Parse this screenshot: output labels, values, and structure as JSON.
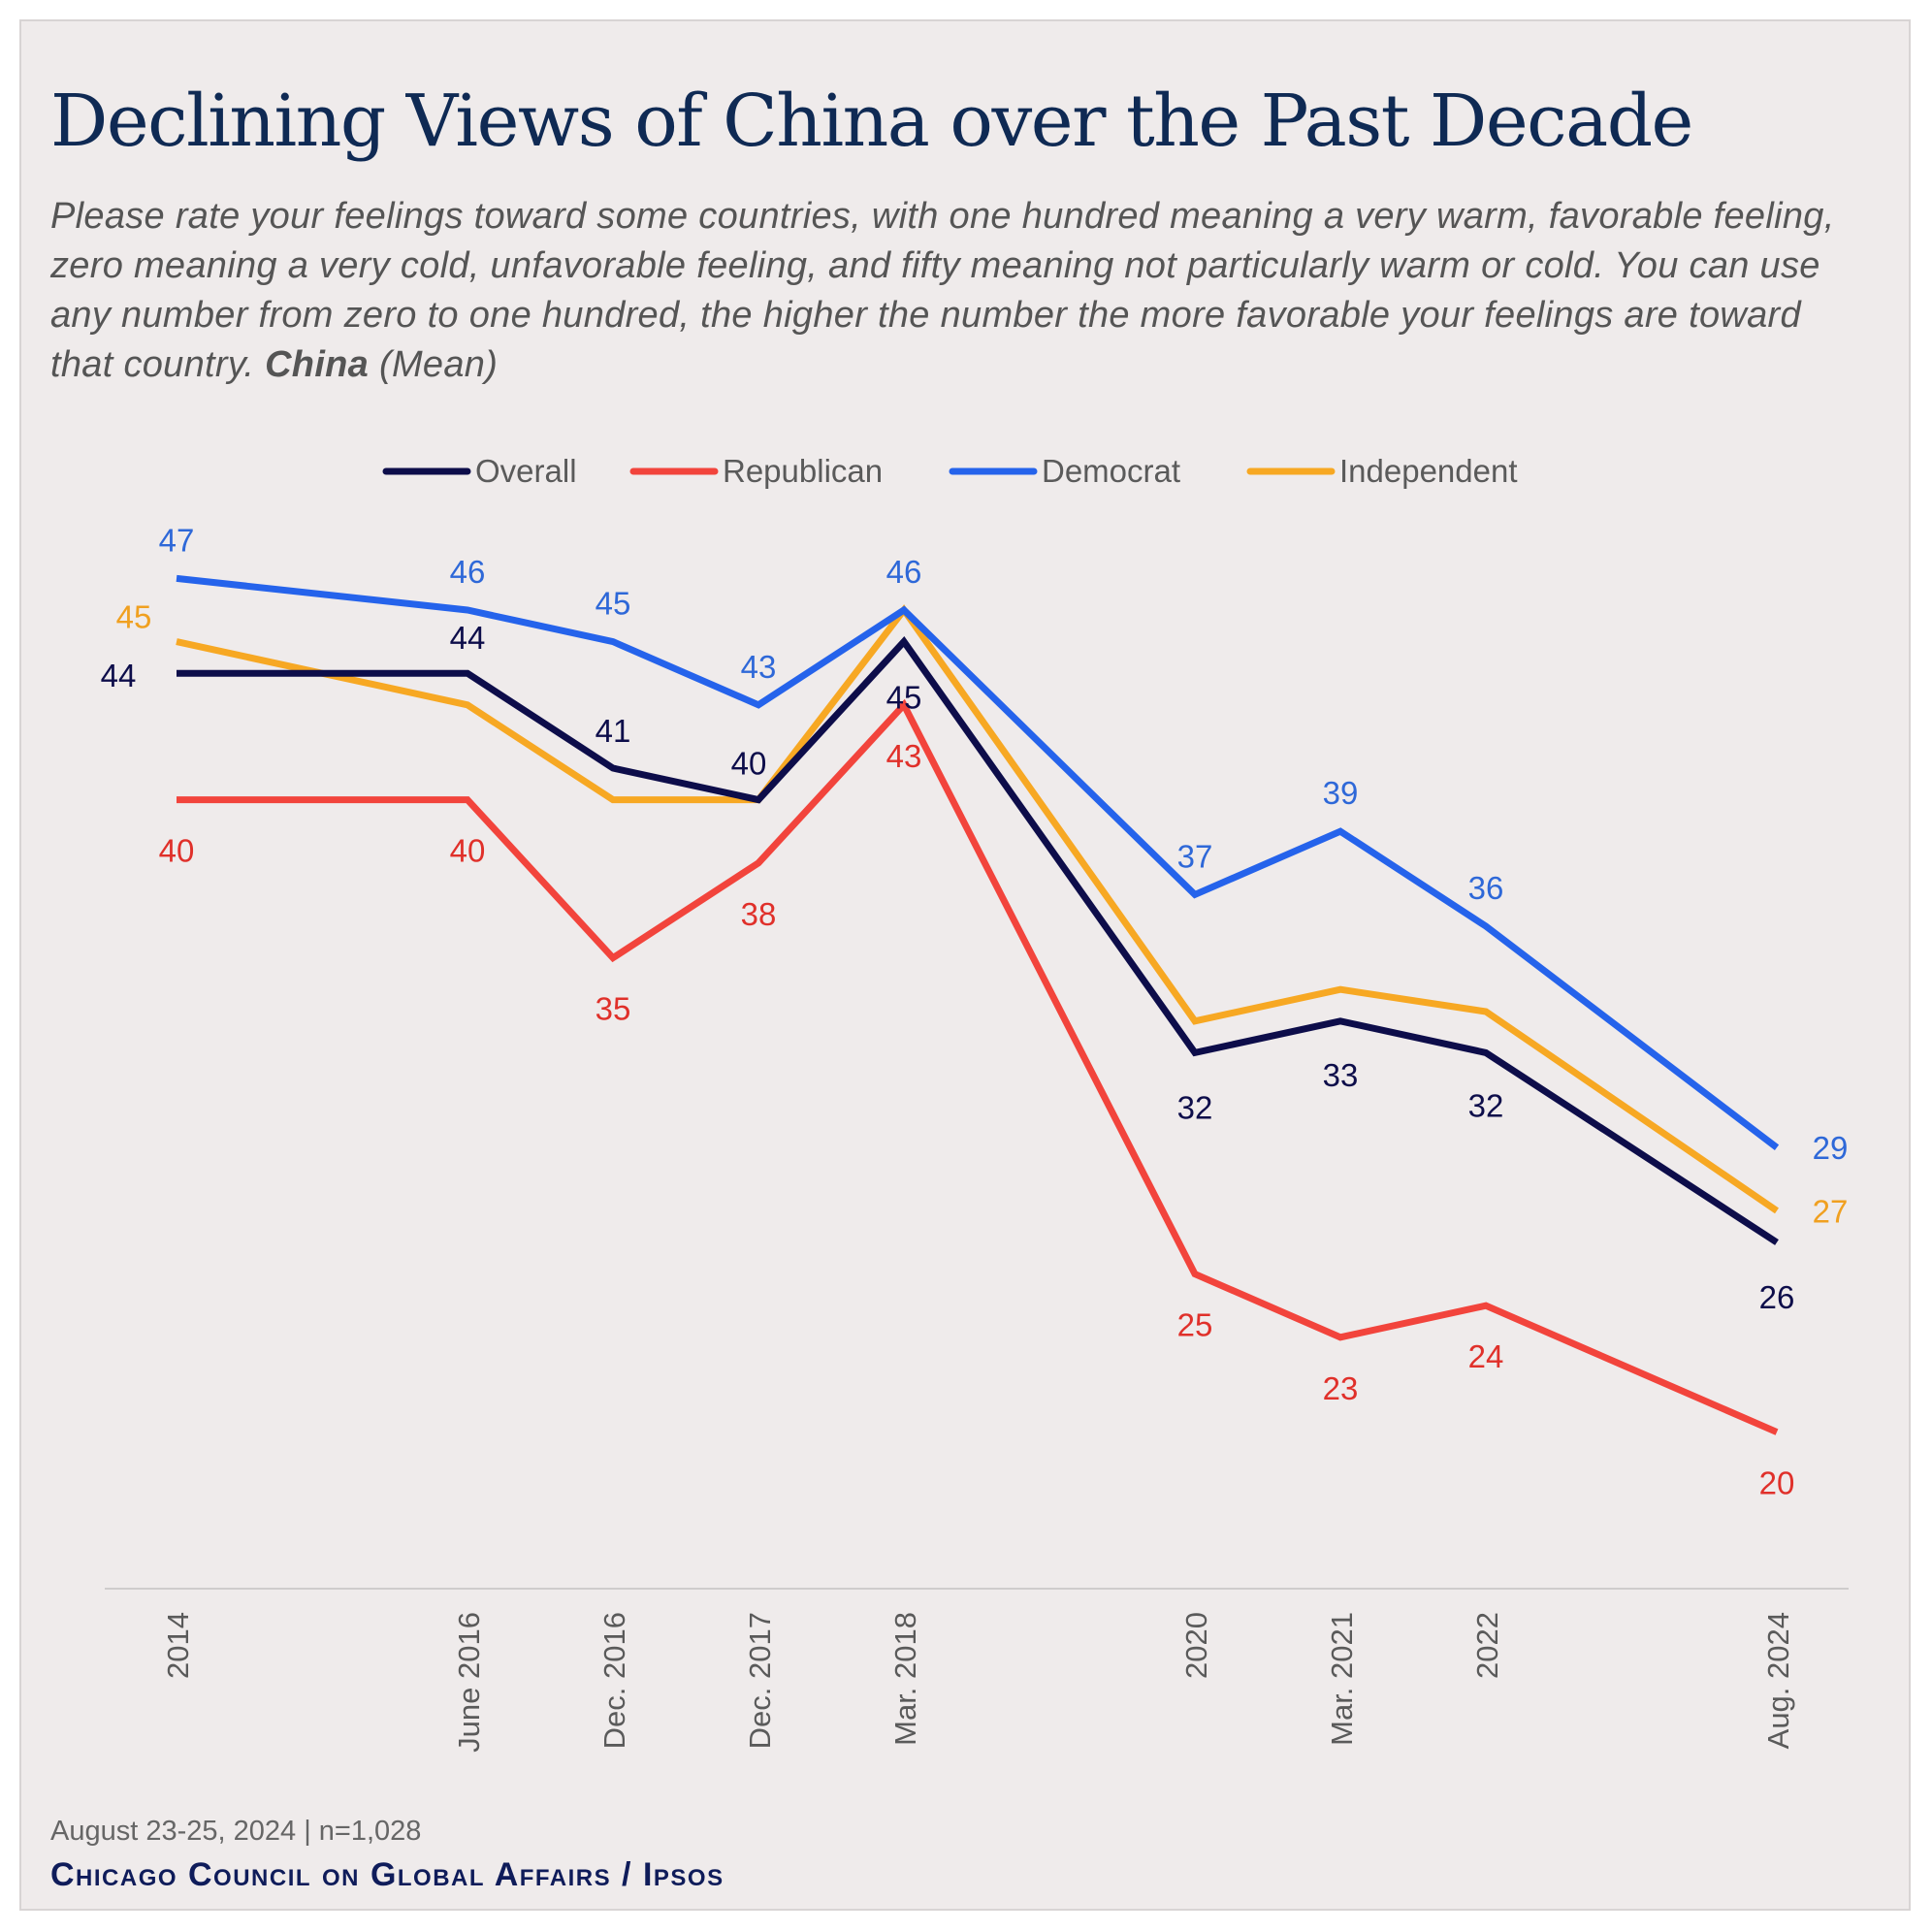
{
  "header": {
    "title": "Declining Views of China over the Past Decade",
    "subtitle_text": "Please rate your feelings toward some countries, with one hundred meaning a very warm, favorable feeling, zero meaning a very cold, unfavorable feeling, and fifty meaning not particularly warm or cold. You can use any number from zero to one hundred, the higher the number the more favorable your feelings are toward that country.",
    "subtitle_emphasis": "China",
    "subtitle_suffix": "(Mean)"
  },
  "footer": {
    "date_note": "August 23-25, 2024 | n=1,028",
    "source": "Chicago Council on Global Affairs / Ipsos"
  },
  "chart_data": {
    "type": "line",
    "x": [
      "2014",
      "June 2016",
      "Dec. 2016",
      "Dec. 2017",
      "Mar. 2018",
      "2020",
      "Mar. 2021",
      "2022",
      "Aug. 2024"
    ],
    "legend_position": "top-center",
    "grid": false,
    "series": [
      {
        "name": "Overall",
        "color": "#0d0d4a",
        "label_color": "#0d0d4a",
        "values": [
          44,
          44,
          41,
          40,
          45,
          32,
          33,
          32,
          26
        ]
      },
      {
        "name": "Republican",
        "color": "#f2443c",
        "label_color": "#e0302a",
        "values": [
          40,
          40,
          35,
          38,
          43,
          25,
          23,
          24,
          20
        ]
      },
      {
        "name": "Democrat",
        "color": "#2563eb",
        "label_color": "#2e68d8",
        "values": [
          47,
          46,
          45,
          43,
          46,
          37,
          39,
          36,
          29
        ]
      },
      {
        "name": "Independent",
        "color": "#f7a823",
        "label_color": "#f0a020",
        "values": [
          45,
          43,
          40,
          40,
          46,
          33,
          34,
          33.3,
          27
        ]
      }
    ],
    "data_labels": [
      {
        "series": "Overall",
        "values": [
          "44",
          "44",
          "41",
          "40",
          "45",
          "32",
          "33",
          "32",
          "26"
        ]
      },
      {
        "series": "Republican",
        "values": [
          "40",
          "40",
          "35",
          "38",
          "43",
          "25",
          "23",
          "24",
          "20"
        ]
      },
      {
        "series": "Democrat",
        "values": [
          "47",
          "46",
          "45",
          "43",
          "46",
          "37",
          "39",
          "36",
          "29"
        ]
      },
      {
        "series": "Independent",
        "values": [
          "45",
          "",
          "",
          "",
          "",
          "",
          "",
          "",
          "27"
        ]
      }
    ]
  }
}
